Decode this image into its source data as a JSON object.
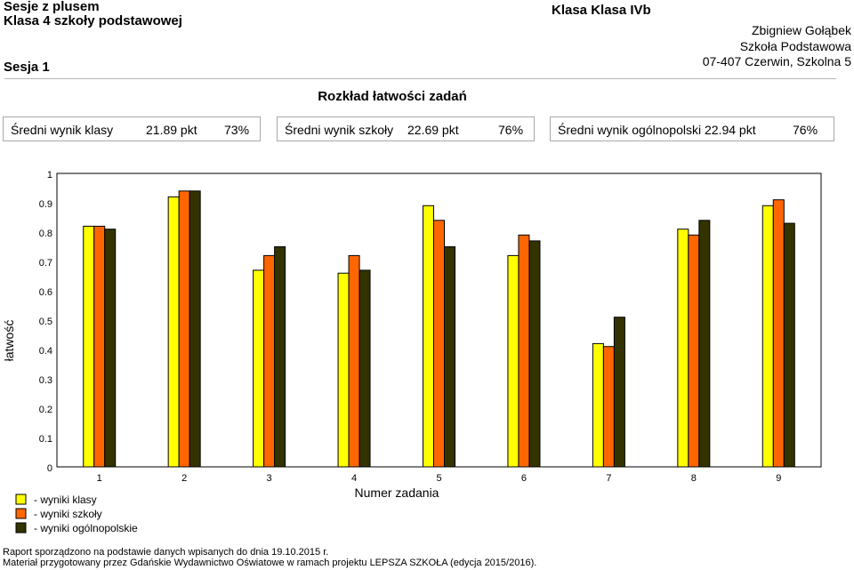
{
  "header": {
    "title_line1": "Sesje z plusem",
    "title_line2": "Klasa 4 szkoły podstawowej",
    "session": "Sesja 1",
    "class_label": "Klasa Klasa IVb",
    "teacher": "Zbigniew Gołąbek",
    "school": "Szkoła Podstawowa",
    "address": "07-407 Czerwin, Szkolna 5"
  },
  "section_title": "Rozkład łatwości zadań",
  "stats": [
    {
      "label": "Średni wynik klasy",
      "points": "21.89 pkt",
      "percent": "73%"
    },
    {
      "label": "Średni wynik szkoły",
      "points": "22.69 pkt",
      "percent": "76%"
    },
    {
      "label": "Średni wynik ogólnopolski",
      "points": "22.94 pkt",
      "percent": "76%"
    }
  ],
  "chart_data": {
    "type": "bar",
    "xlabel": "Numer zadania",
    "ylabel": "łatwość",
    "ylim": [
      0,
      1
    ],
    "yticks": [
      "0",
      "0.1",
      "0.2",
      "0.3",
      "0.4",
      "0.5",
      "0.6",
      "0.7",
      "0.8",
      "0.9",
      "1"
    ],
    "categories": [
      "1",
      "2",
      "3",
      "4",
      "5",
      "6",
      "7",
      "8",
      "9"
    ],
    "grid": false,
    "legend_position": "bottom-left",
    "series": [
      {
        "name": "- wyniki klasy",
        "color": "#ffff00",
        "values": [
          0.82,
          0.92,
          0.67,
          0.66,
          0.89,
          0.72,
          0.42,
          0.81,
          0.89
        ]
      },
      {
        "name": "- wyniki szkoły",
        "color": "#ff6600",
        "values": [
          0.82,
          0.94,
          0.72,
          0.72,
          0.84,
          0.79,
          0.41,
          0.79,
          0.91
        ]
      },
      {
        "name": "- wyniki ogólnopolskie",
        "color": "#333300",
        "values": [
          0.81,
          0.94,
          0.75,
          0.67,
          0.75,
          0.77,
          0.51,
          0.84,
          0.83
        ]
      }
    ]
  },
  "footer": {
    "line1": "Raport sporządzono na podstawie danych wpisanych do dnia 19.10.2015 r.",
    "line2": "Materiał przygotowany przez Gdańskie Wydawnictwo Oświatowe w ramach projektu LEPSZA SZKOŁA (edycja 2015/2016)."
  }
}
